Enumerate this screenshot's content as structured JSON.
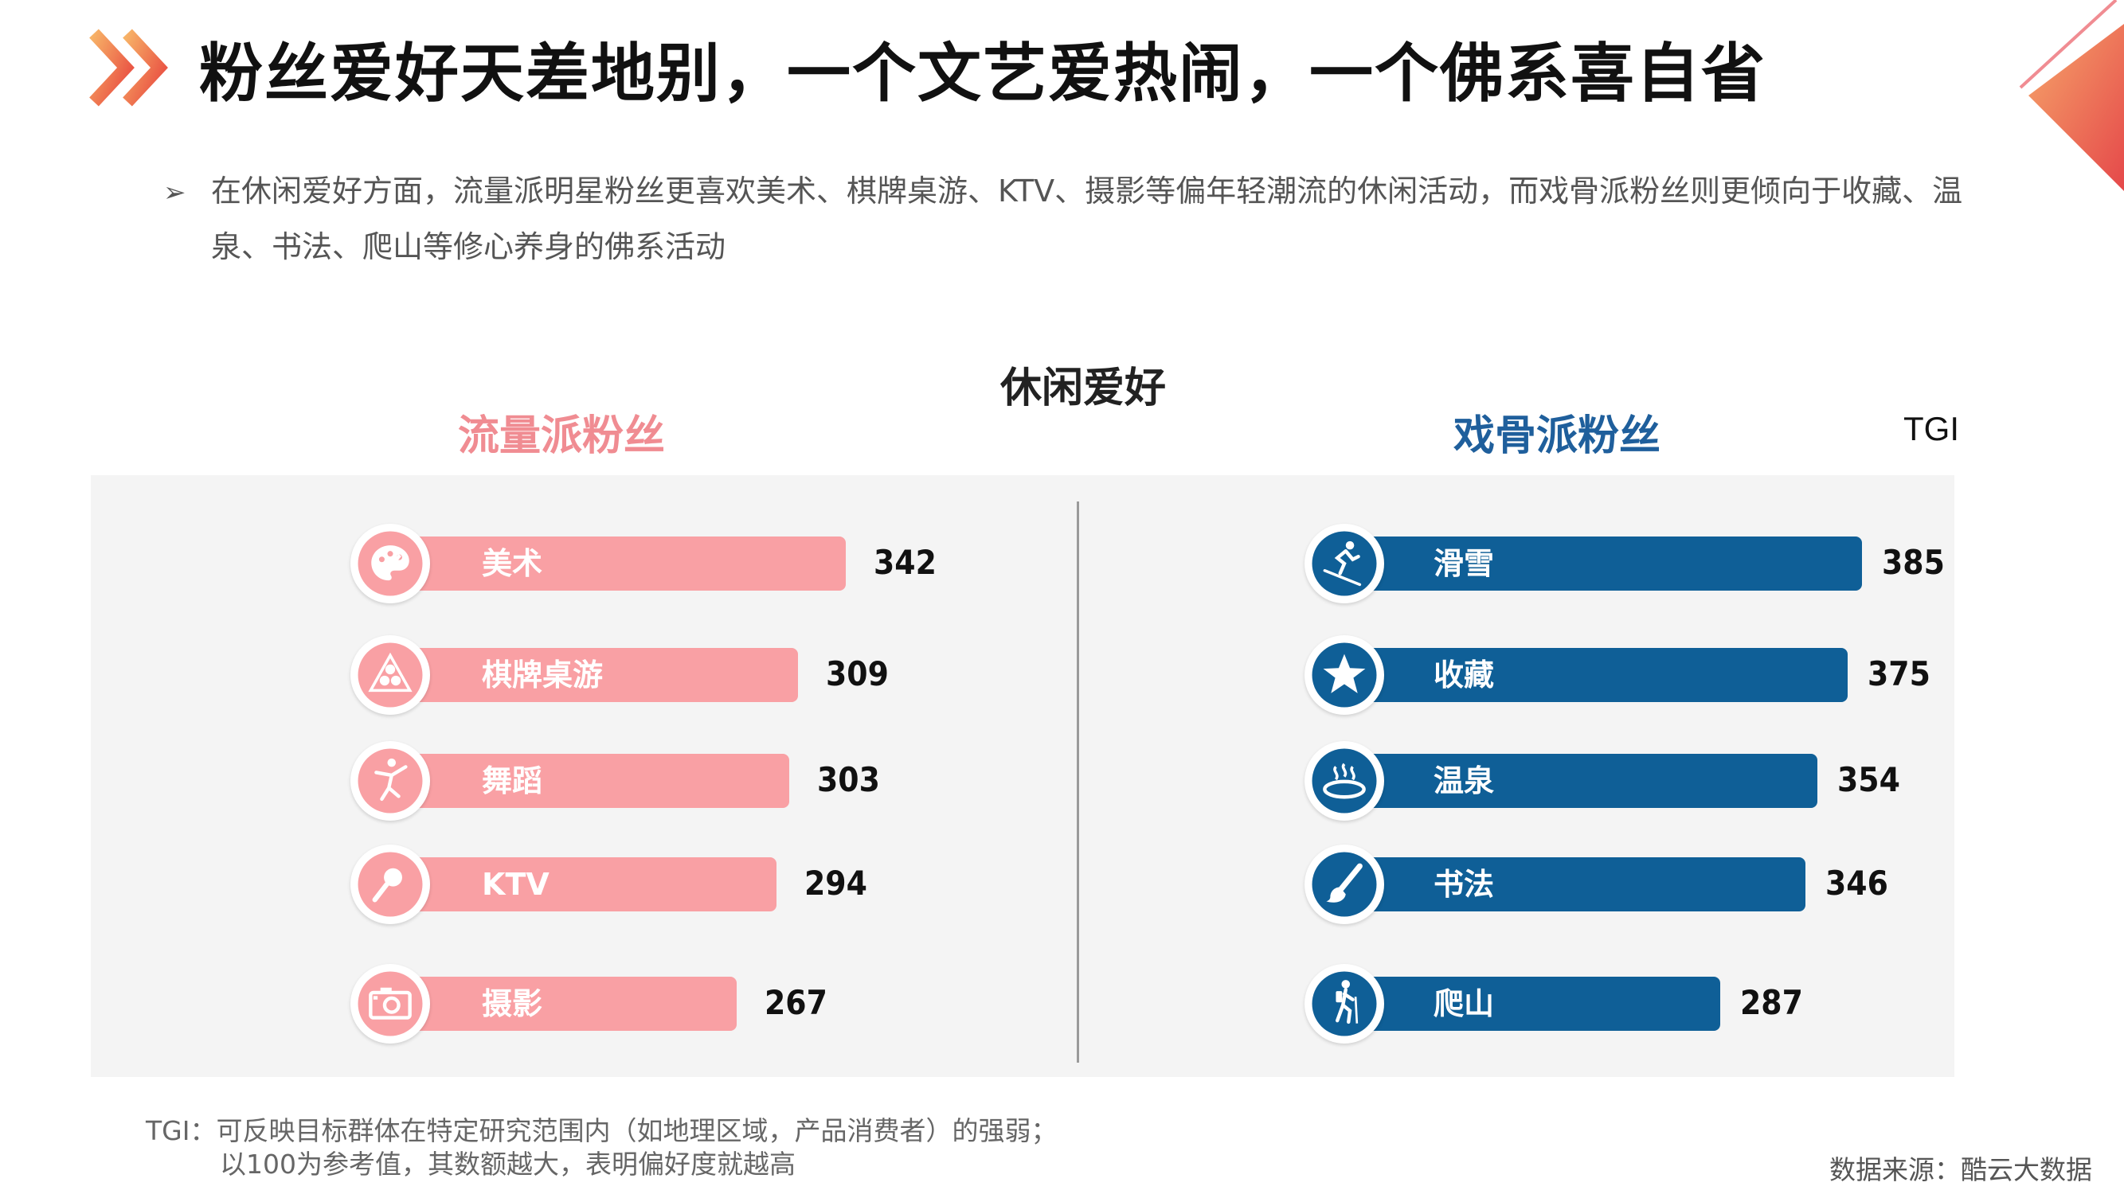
{
  "title": "粉丝爱好天差地别，一个文艺爱热闹，一个佛系喜自省",
  "intro_line1": "在休闲爱好方面，流量派明星粉丝更喜欢美术、棋牌桌游、KTV、摄影等偏年轻潮流的休闲活动，而戏骨派粉丝则更倾向于收藏、温",
  "intro_line2": "泉、书法、爬山等修心养身的佛系活动",
  "footnote_line1": "TGI：可反映目标群体在特定研究范围内（如地理区域，产品消费者）的强弱；",
  "footnote_line2": "以100为参考值，其数额越大，表明偏好度就越高",
  "source": "数据来源：酷云大数据",
  "colors": {
    "left": "#f9a0a4",
    "left_header": "#f08c92",
    "right": "#0f5f97",
    "right_header": "#1f5f9c"
  },
  "chart_data": {
    "type": "bar",
    "title": "休闲爱好",
    "value_label": "TGI",
    "groups": [
      {
        "name": "流量派粉丝",
        "color": "#f9a0a4",
        "items": [
          {
            "label": "美术",
            "value": 342,
            "icon": "palette-icon"
          },
          {
            "label": "棋牌桌游",
            "value": 309,
            "icon": "billiards-icon"
          },
          {
            "label": "舞蹈",
            "value": 303,
            "icon": "dancer-icon"
          },
          {
            "label": "KTV",
            "value": 294,
            "icon": "microphone-icon"
          },
          {
            "label": "摄影",
            "value": 267,
            "icon": "camera-icon"
          }
        ]
      },
      {
        "name": "戏骨派粉丝",
        "color": "#0f5f97",
        "items": [
          {
            "label": "滑雪",
            "value": 385,
            "icon": "skier-icon"
          },
          {
            "label": "收藏",
            "value": 375,
            "icon": "star-icon"
          },
          {
            "label": "温泉",
            "value": 354,
            "icon": "hot-spring-icon"
          },
          {
            "label": "书法",
            "value": 346,
            "icon": "brush-icon"
          },
          {
            "label": "爬山",
            "value": 287,
            "icon": "hiker-icon"
          }
        ]
      }
    ]
  }
}
